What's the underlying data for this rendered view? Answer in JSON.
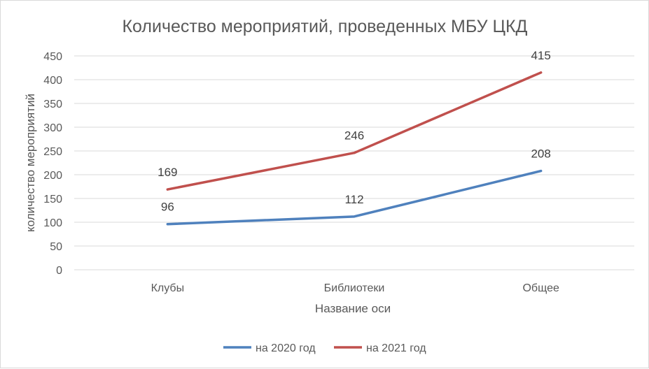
{
  "chart_data": {
    "type": "line",
    "title": "Количество мероприятий, проведенных МБУ ЦКД",
    "xlabel": "Название оси",
    "ylabel": "количество мероприятий",
    "categories": [
      "Клубы",
      "Библиотеки",
      "Общее"
    ],
    "ylim": [
      0,
      450
    ],
    "yticks": [
      "0",
      "50",
      "100",
      "150",
      "200",
      "250",
      "300",
      "350",
      "400",
      "450"
    ],
    "grid": true,
    "legend_position": "bottom",
    "series": [
      {
        "name": "на 2020 год",
        "values": [
          96,
          112,
          208
        ],
        "labels": [
          "96",
          "112",
          "208"
        ],
        "color": "#4f81bd"
      },
      {
        "name": "на 2021 год",
        "values": [
          169,
          246,
          415
        ],
        "labels": [
          "169",
          "246",
          "415"
        ],
        "color": "#c0504d"
      }
    ]
  }
}
